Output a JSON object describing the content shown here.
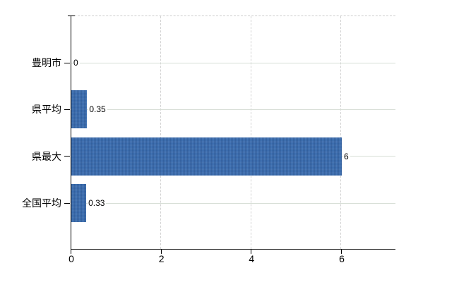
{
  "chart_data": {
    "type": "bar",
    "orientation": "horizontal",
    "title": "",
    "categories": [
      "豊明市",
      "県平均",
      "県最大",
      "全国平均"
    ],
    "values": [
      0,
      0.35,
      6,
      0.33
    ],
    "value_labels": [
      "0",
      "0.35",
      "6",
      "0.33"
    ],
    "x_tick_labels": [
      "0",
      "2",
      "4",
      "6"
    ],
    "x_tick_values": [
      0,
      2,
      4,
      6
    ],
    "xlim": [
      0,
      7.2
    ],
    "grid": true,
    "legend_position": "none",
    "colors": {
      "bar": "#3e70b2",
      "axis": "#000000",
      "h_gridline": "#d7ded6",
      "v_gridline": "#d2d2d2",
      "top_border": "#cccccc",
      "text": "#000000",
      "background": "#ffffff"
    }
  }
}
